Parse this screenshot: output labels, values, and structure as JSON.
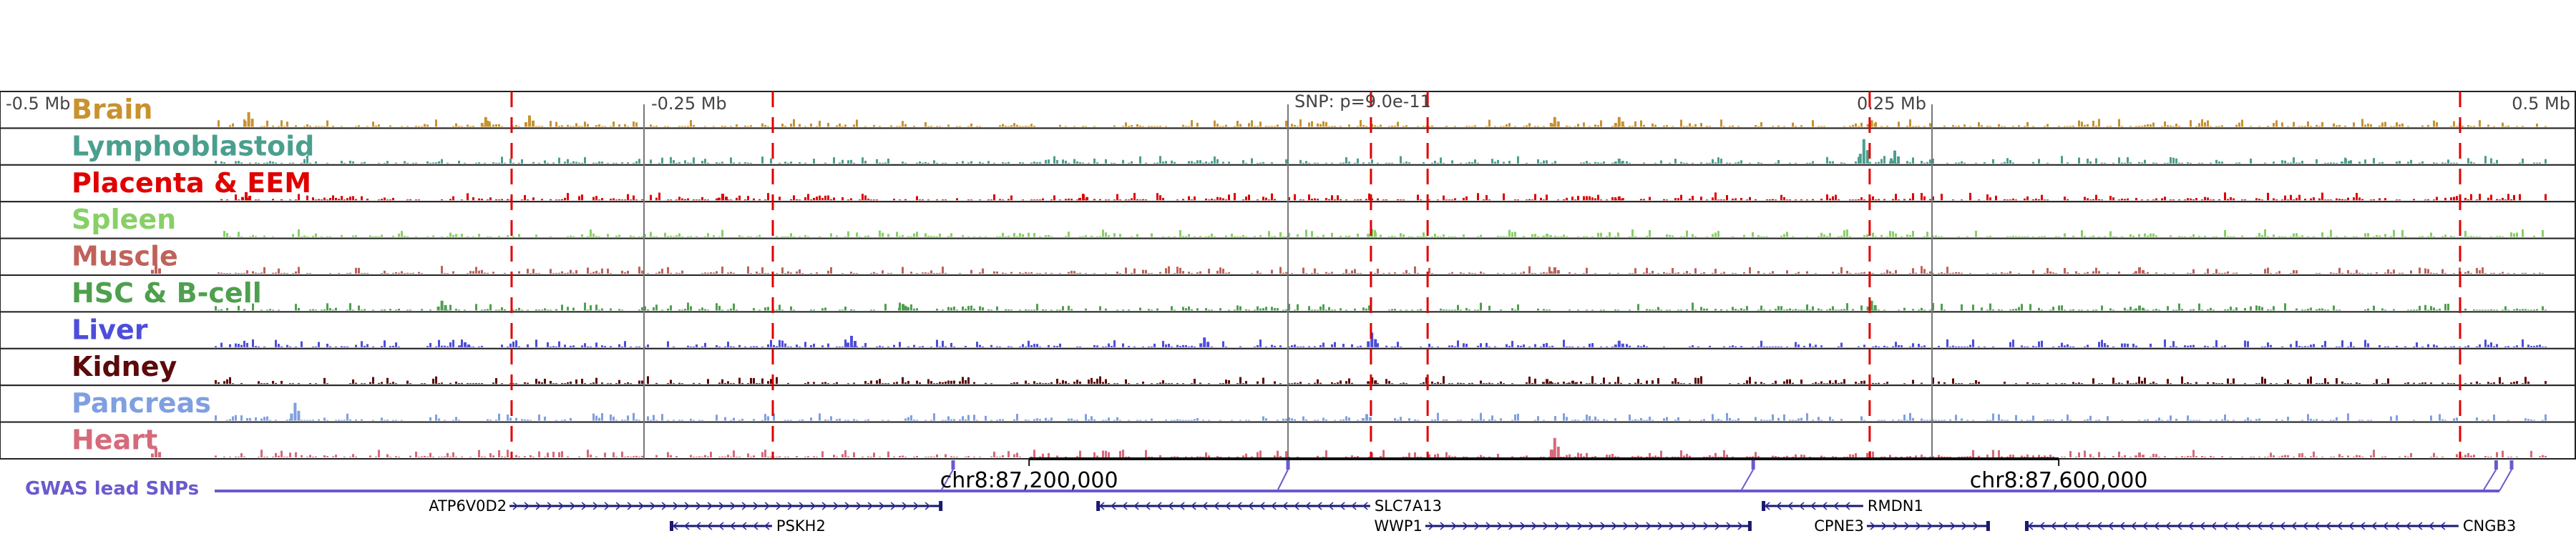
{
  "scale": {
    "left_label": "-0.5 Mb",
    "minus_quarter_label": "-0.25 Mb",
    "center_label": "SNP: p=9.0e-11",
    "plus_quarter_label": "0.25 Mb",
    "right_label": "0.5 Mb",
    "range_mb": [
      -0.5,
      0.5
    ],
    "grid_mb": [
      -0.25,
      0,
      0.25
    ]
  },
  "highlight_positions_mb": [
    -0.3014,
    -0.2,
    0.0322,
    0.0542,
    0.2258,
    0.455
  ],
  "highlight_color": "#e00000",
  "tracks": [
    {
      "name": "Brain",
      "color": "#c8922e",
      "peaks": [
        [
          -0.404,
          0.45
        ],
        [
          -0.295,
          0.35
        ],
        [
          -0.312,
          0.3
        ],
        [
          0.103,
          0.3
        ],
        [
          0.128,
          0.3
        ],
        [
          0.226,
          0.2
        ]
      ]
    },
    {
      "name": "Lymphoblastoid",
      "color": "#4a9f8e",
      "peaks": [
        [
          0.223,
          0.75
        ],
        [
          0.235,
          0.4
        ],
        [
          0.128,
          0.15
        ],
        [
          0.41,
          0.15
        ]
      ]
    },
    {
      "name": "Placenta & EEM",
      "color": "#e00000",
      "peaks": [
        [
          -0.405,
          0.25
        ],
        [
          -0.22,
          0.2
        ],
        [
          -0.08,
          0.18
        ],
        [
          0.128,
          0.12
        ]
      ]
    },
    {
      "name": "Spleen",
      "color": "#88d066",
      "peaks": [
        [
          0.032,
          0.25
        ],
        [
          0.1,
          0.1
        ]
      ]
    },
    {
      "name": "Muscle",
      "color": "#c0625a",
      "peaks": [
        [
          -0.44,
          0.3
        ],
        [
          0.103,
          0.2
        ],
        [
          0.33,
          0.2
        ]
      ]
    },
    {
      "name": "HSC & B-cell",
      "color": "#4ea04e",
      "peaks": [
        [
          -0.329,
          0.3
        ],
        [
          -0.15,
          0.2
        ],
        [
          0.226,
          0.3
        ],
        [
          0.33,
          0.15
        ]
      ]
    },
    {
      "name": "Liver",
      "color": "#4d4ddb",
      "peaks": [
        [
          -0.17,
          0.35
        ],
        [
          -0.033,
          0.3
        ],
        [
          0.032,
          0.45
        ],
        [
          0.128,
          0.2
        ],
        [
          -0.32,
          0.15
        ]
      ]
    },
    {
      "name": "Kidney",
      "color": "#5c0a0a",
      "peaks": [
        [
          0.032,
          0.2
        ],
        [
          0.1,
          0.15
        ],
        [
          0.11,
          0.1
        ]
      ]
    },
    {
      "name": "Pancreas",
      "color": "#7f9fe0",
      "peaks": [
        [
          -0.386,
          0.55
        ],
        [
          0.03,
          0.2
        ]
      ]
    },
    {
      "name": "Heart",
      "color": "#d66a7a",
      "peaks": [
        [
          -0.44,
          0.3
        ],
        [
          0.103,
          0.6
        ],
        [
          0.33,
          0.15
        ]
      ]
    }
  ],
  "gwas": {
    "label": "GWAS lead SNPs",
    "color": "#6a5acd",
    "snp_positions_mb": [
      -0.13,
      0.0,
      0.1806,
      0.469,
      0.475
    ]
  },
  "coordinates": [
    {
      "label": "chr8:87,200,000",
      "mb": -0.1005
    },
    {
      "label": "chr8:87,600,000",
      "mb": 0.2992
    }
  ],
  "genes": [
    {
      "name": "ATP6V0D2",
      "start_mb": -0.3022,
      "end_mb": -0.1344,
      "strand": "+",
      "row": 0
    },
    {
      "name": "SLC7A13",
      "start_mb": -0.0744,
      "end_mb": 0.0319,
      "strand": "-",
      "row": 0
    },
    {
      "name": "RMDN1",
      "start_mb": 0.1839,
      "end_mb": 0.2233,
      "strand": "-",
      "row": 0
    },
    {
      "name": "PSKH2",
      "start_mb": -0.24,
      "end_mb": -0.2003,
      "strand": "-",
      "row": 1
    },
    {
      "name": "WWP1",
      "start_mb": 0.0533,
      "end_mb": 0.1797,
      "strand": "+",
      "row": 1
    },
    {
      "name": "CPNE3",
      "start_mb": 0.2247,
      "end_mb": 0.2722,
      "strand": "+",
      "row": 1
    },
    {
      "name": "CNGB3",
      "start_mb": 0.2861,
      "end_mb": 0.4544,
      "strand": "-",
      "row": 1
    }
  ]
}
